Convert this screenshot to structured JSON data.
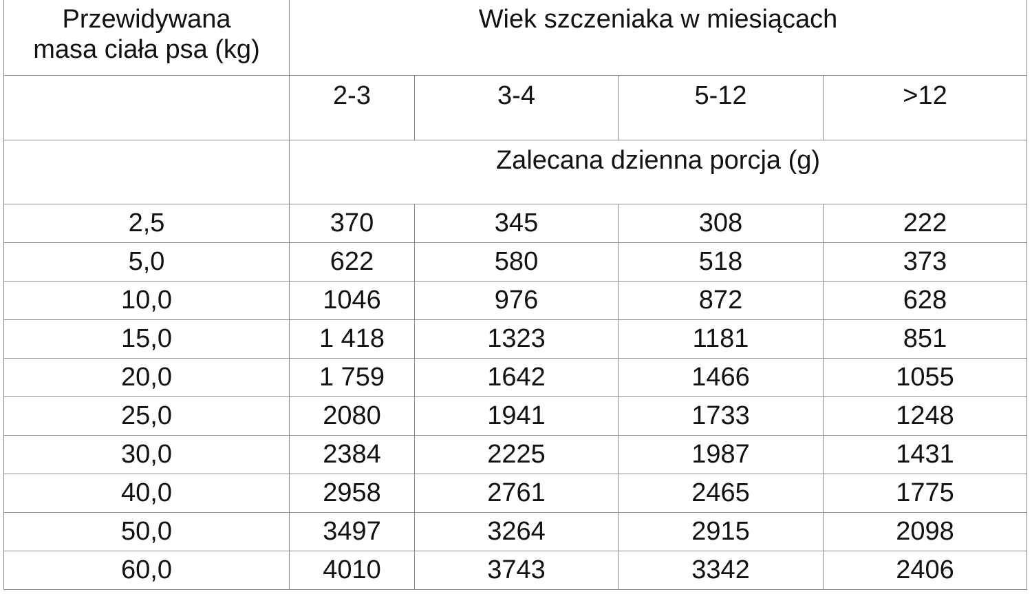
{
  "table": {
    "header": {
      "weight_label_line1": "Przewidywana",
      "weight_label_line2": "masa ciała psa (kg)",
      "age_label": "Wiek szczeniaka w miesiącach",
      "age_groups": [
        "2-3",
        "3-4",
        "5-12",
        ">12"
      ],
      "portion_label": "Zalecana dzienna porcja (g)"
    },
    "rows": [
      [
        "2,5",
        "370",
        "345",
        "308",
        "222"
      ],
      [
        "5,0",
        "622",
        "580",
        "518",
        "373"
      ],
      [
        "10,0",
        "1046",
        "976",
        "872",
        "628"
      ],
      [
        "15,0",
        "1 418",
        "1323",
        "1181",
        "851"
      ],
      [
        "20,0",
        "1 759",
        "1642",
        "1466",
        "1055"
      ],
      [
        "25,0",
        "2080",
        "1941",
        "1733",
        "1248"
      ],
      [
        "30,0",
        "2384",
        "2225",
        "1987",
        "1431"
      ],
      [
        "40,0",
        "2958",
        "2761",
        "2465",
        "1775"
      ],
      [
        "50,0",
        "3497",
        "3264",
        "2915",
        "2098"
      ],
      [
        "60,0",
        "4010",
        "3743",
        "3342",
        "2406"
      ]
    ]
  }
}
